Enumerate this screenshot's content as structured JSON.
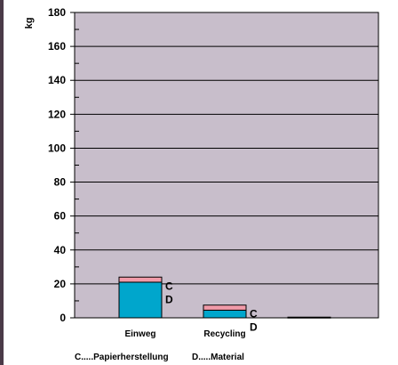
{
  "chart_data": {
    "type": "bar",
    "stacked": true,
    "ylabel": "kg",
    "xlabel": "",
    "ylim": [
      0,
      180
    ],
    "y_ticks": [
      0,
      20,
      40,
      60,
      80,
      100,
      120,
      140,
      160,
      180
    ],
    "grid": true,
    "categories": [
      "Einweg",
      "Recycling",
      ""
    ],
    "series": [
      {
        "key": "D",
        "values": [
          21,
          4.5,
          0.4
        ],
        "color": "#00a6cc"
      },
      {
        "key": "C",
        "values": [
          3,
          3,
          0
        ],
        "color": "#f09aa8"
      }
    ],
    "bar_labels": {
      "Einweg": [
        "C",
        "D"
      ],
      "Recycling": [
        "C",
        "D"
      ]
    },
    "legend": {
      "placement": "bottom",
      "entries": [
        "C.....Papierherstellung",
        "D.....Material"
      ]
    },
    "colors": {
      "plot_background": "#c8becb",
      "left_edge": "#4a3a48"
    }
  }
}
